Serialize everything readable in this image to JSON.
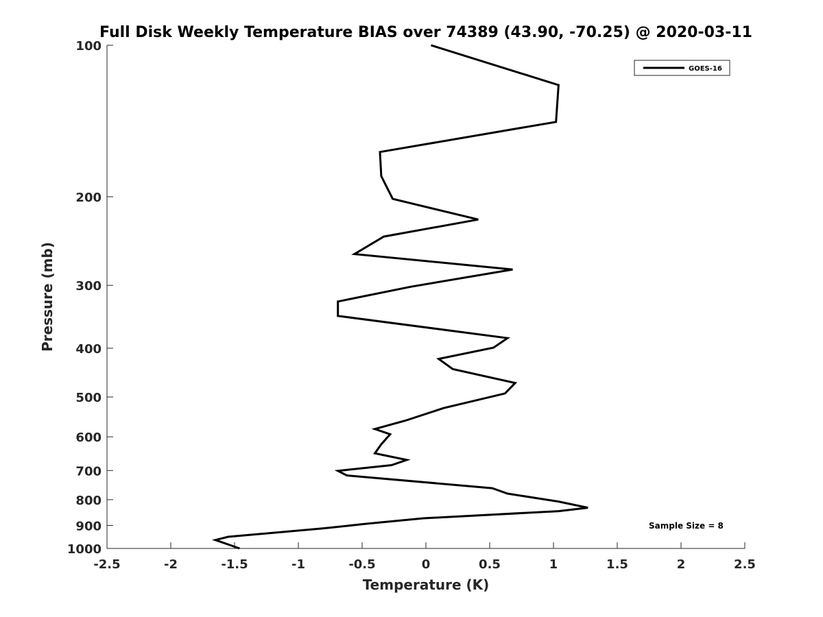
{
  "chart_data": {
    "type": "line",
    "title": "Full Disk Weekly Temperature BIAS over 74389 (43.90, -70.25) @ 2020-03-11",
    "xlabel": "Temperature (K)",
    "ylabel": "Pressure (mb)",
    "xlim": [
      -2.5,
      2.5
    ],
    "ylim": [
      100,
      1000
    ],
    "y_scale": "log",
    "y_reversed": true,
    "grid": false,
    "legend_position": "top-right",
    "x_ticks": [
      "-2.5",
      "-2",
      "-1.5",
      "-1",
      "-0.5",
      "0",
      "0.5",
      "1",
      "1.5",
      "2",
      "2.5"
    ],
    "y_ticks": [
      "100",
      "200",
      "300",
      "400",
      "500",
      "600",
      "700",
      "800",
      "900",
      "1000"
    ],
    "series": [
      {
        "name": "GOES-16",
        "color": "#000000",
        "x": [
          0.04,
          1.04,
          1.02,
          -0.36,
          -0.35,
          -0.26,
          0.41,
          -0.33,
          -0.56,
          0.68,
          -0.12,
          -0.69,
          -0.69,
          0.64,
          0.53,
          0.1,
          0.21,
          0.7,
          0.62,
          0.14,
          -0.16,
          -0.4,
          -0.28,
          -0.35,
          -0.4,
          -0.15,
          -0.27,
          -0.69,
          -0.62,
          0.52,
          0.64,
          1.04,
          1.27,
          1.04,
          -0.02,
          -0.46,
          -0.8,
          -1.55,
          -1.65,
          -1.46
        ],
        "y": [
          100,
          120,
          142,
          163,
          182,
          202,
          222,
          240,
          260,
          279,
          302,
          323,
          345,
          382,
          399,
          420,
          440,
          469,
          492,
          526,
          557,
          579,
          593,
          621,
          647,
          667,
          683,
          701,
          716,
          759,
          778,
          807,
          830,
          843,
          871,
          893,
          912,
          948,
          962,
          1000
        ]
      }
    ],
    "annotation": "Sample Size = 8"
  }
}
